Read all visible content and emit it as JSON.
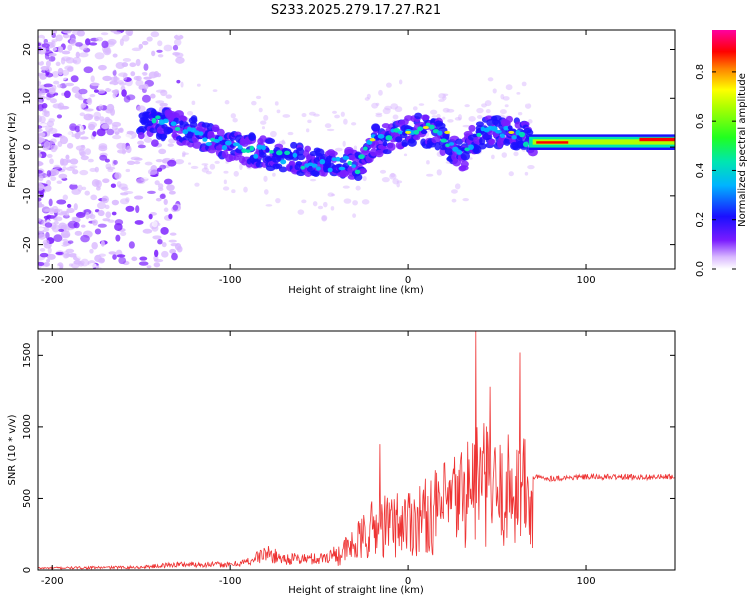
{
  "chart_data": [
    {
      "type": "heatmap",
      "title": "S233.2025.279.17.27.R21",
      "xlabel": "Height of straight line (km)",
      "ylabel": "Frequency (Hz)",
      "xlim": [
        -208,
        150
      ],
      "ylim": [
        -25,
        24
      ],
      "xticks": [
        -200,
        -100,
        0,
        100
      ],
      "yticks": [
        -20,
        -10,
        0,
        10,
        20
      ],
      "colorbar": {
        "label": "Normalized spectral amplitude",
        "range": [
          0,
          0.97
        ],
        "ticks": [
          0.0,
          0.2,
          0.4,
          0.6,
          0.8
        ]
      },
      "ridge_frequency": {
        "x": [
          -150,
          -140,
          -120,
          -100,
          -80,
          -60,
          -45,
          -35,
          -28,
          -20,
          -10,
          0,
          5,
          15,
          20,
          25,
          30,
          40,
          50,
          60,
          65,
          70,
          100,
          150
        ],
        "y": [
          5,
          5,
          3,
          0,
          -1,
          -3,
          -4,
          -3,
          -4,
          1,
          2,
          3,
          4,
          3,
          1,
          0,
          -2,
          3,
          3,
          3,
          2,
          1,
          1,
          1.5
        ]
      }
    },
    {
      "type": "line",
      "title": "",
      "xlabel": "Height of straight line (km)",
      "ylabel": "SNR (10 * v/v)",
      "xlim": [
        -208,
        150
      ],
      "ylim": [
        0,
        1670
      ],
      "xticks": [
        -200,
        -100,
        0,
        100
      ],
      "yticks": [
        0,
        500,
        1000,
        1500
      ],
      "series": [
        {
          "name": "SNR",
          "color": "#ee3333",
          "envelope_x": [
            -208,
            -180,
            -150,
            -130,
            -110,
            -100,
            -90,
            -80,
            -70,
            -50,
            -40,
            -30,
            -20,
            -10,
            0,
            10,
            20,
            30,
            40,
            50,
            60,
            65,
            70,
            80,
            100,
            150
          ],
          "envelope_y": [
            20,
            25,
            30,
            60,
            60,
            55,
            90,
            180,
            120,
            120,
            180,
            300,
            500,
            550,
            600,
            650,
            750,
            900,
            1100,
            900,
            1000,
            1000,
            650,
            640,
            650,
            650
          ],
          "peaks": [
            {
              "x": 38,
              "y": 1670
            },
            {
              "x": 63,
              "y": 1520
            },
            {
              "x": 46,
              "y": 1280
            },
            {
              "x": -16,
              "y": 880
            }
          ]
        }
      ]
    }
  ]
}
